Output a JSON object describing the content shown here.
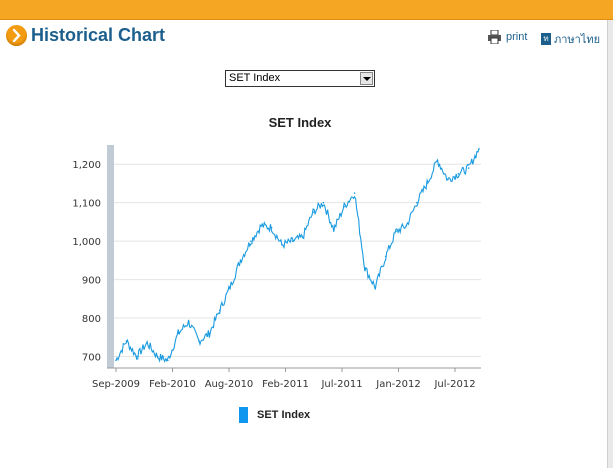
{
  "header": {
    "title": "Historical Chart"
  },
  "toolbar": {
    "print_label": "print",
    "lang_label": "ภาษาไทย",
    "lang_badge": "ท"
  },
  "selector": {
    "selected": "SET Index"
  },
  "colors": {
    "accent": "#f5a623",
    "title": "#1d5f8c",
    "line": "#1a9be0"
  },
  "chart_data": {
    "type": "line",
    "title": "SET Index",
    "xlabel": "",
    "ylabel": "",
    "x_ticks": [
      "Sep-2009",
      "Feb-2010",
      "Aug-2010",
      "Feb-2011",
      "Jul-2011",
      "Jan-2012",
      "Jul-2012"
    ],
    "y_ticks": [
      "700",
      "800",
      "900",
      "1,000",
      "1,100",
      "1,200"
    ],
    "ylim": [
      670,
      1250
    ],
    "legend": "SET Index",
    "series": [
      {
        "name": "SET Index",
        "x": [
          "Sep-2009",
          "Oct-2009",
          "Nov-2009",
          "Dec-2009",
          "Jan-2010",
          "Feb-2010",
          "Mar-2010",
          "Apr-2010",
          "May-2010",
          "Jun-2010",
          "Jul-2010",
          "Aug-2010",
          "Sep-2010",
          "Oct-2010",
          "Nov-2010",
          "Dec-2010",
          "Jan-2011",
          "Feb-2011",
          "Mar-2011",
          "Apr-2011",
          "May-2011",
          "Jun-2011",
          "Jul-2011",
          "Aug-2011",
          "Sep-2011",
          "Oct-2011",
          "Nov-2011",
          "Dec-2011",
          "Jan-2012",
          "Feb-2012",
          "Mar-2012",
          "Apr-2012",
          "May-2012",
          "Jun-2012",
          "Jul-2012",
          "Aug-2012"
        ],
        "values": [
          690,
          740,
          700,
          735,
          700,
          690,
          760,
          790,
          740,
          760,
          820,
          880,
          950,
          1000,
          1040,
          1035,
          990,
          1000,
          1010,
          1075,
          1100,
          1030,
          1090,
          1125,
          930,
          880,
          960,
          1025,
          1040,
          1100,
          1150,
          1210,
          1160,
          1175,
          1190,
          1240
        ]
      }
    ]
  }
}
